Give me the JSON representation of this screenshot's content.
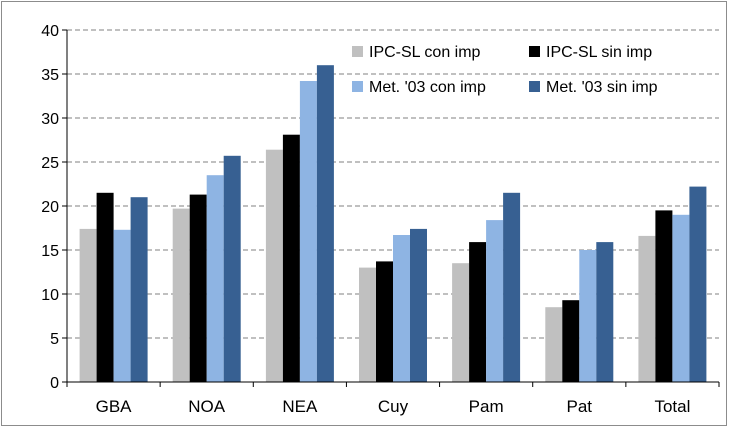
{
  "colors": {
    "series": [
      "#c0c0c0",
      "#000000",
      "#8eb4e3",
      "#376092"
    ],
    "grid": "#808080",
    "axis": "#000000"
  },
  "chart_data": {
    "type": "bar",
    "title": "",
    "xlabel": "",
    "ylabel": "",
    "categories": [
      "GBA",
      "NOA",
      "NEA",
      "Cuy",
      "Pam",
      "Pat",
      "Total"
    ],
    "ylim": [
      0,
      40
    ],
    "yticks": [
      "0",
      "5",
      "10",
      "15",
      "20",
      "25",
      "30",
      "35",
      "40"
    ],
    "grid": "horizontal dashed",
    "legend_position": "top-right",
    "series": [
      {
        "name": "IPC-SL con imp",
        "values": [
          17.4,
          19.7,
          26.4,
          13.0,
          13.5,
          8.5,
          16.6
        ]
      },
      {
        "name": "IPC-SL sin imp",
        "values": [
          21.5,
          21.3,
          28.1,
          13.7,
          15.9,
          9.3,
          19.5
        ]
      },
      {
        "name": "Met. '03 con imp",
        "values": [
          17.3,
          23.5,
          34.2,
          16.7,
          18.4,
          15.0,
          19.0
        ]
      },
      {
        "name": "Met. '03 sin imp",
        "values": [
          21.0,
          25.7,
          36.0,
          17.4,
          21.5,
          15.9,
          22.2
        ]
      }
    ]
  }
}
